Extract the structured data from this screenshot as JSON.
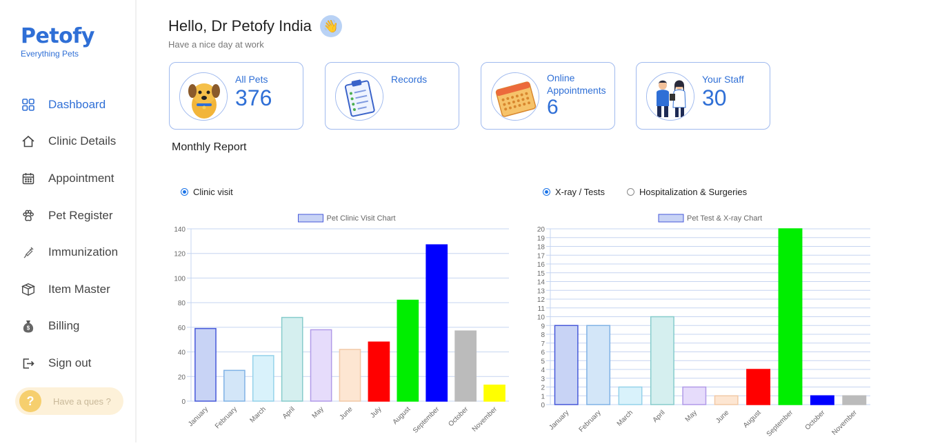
{
  "sidebar": {
    "logo_title": "Petofy",
    "logo_sub": "Everything Pets",
    "items": [
      {
        "label": "Dashboard",
        "icon": "grid-icon"
      },
      {
        "label": "Clinic Details",
        "icon": "home-icon"
      },
      {
        "label": "Appointment",
        "icon": "calendar-icon"
      },
      {
        "label": "Pet Register",
        "icon": "paw-icon"
      },
      {
        "label": "Immunization",
        "icon": "syringe-icon"
      },
      {
        "label": "Item Master",
        "icon": "box-icon"
      },
      {
        "label": "Billing",
        "icon": "money-bag-icon"
      },
      {
        "label": "Sign out",
        "icon": "sign-out-icon"
      }
    ],
    "help_label": "Have a ques ?",
    "help_icon": "?"
  },
  "header": {
    "greeting": "Hello, Dr Petofy India",
    "wave": "👋",
    "subtitle": "Have a nice day at work"
  },
  "cards": [
    {
      "label": "All Pets",
      "value": "376",
      "icon": "dog-icon"
    },
    {
      "label": "Records",
      "value": "",
      "icon": "clipboard-icon"
    },
    {
      "label": "Online Appointments",
      "value": "6",
      "icon": "calendar-icon"
    },
    {
      "label": "Your Staff",
      "value": "30",
      "icon": "staff-icon"
    }
  ],
  "report": {
    "title": "Monthly Report",
    "left_radios": [
      {
        "label": "Clinic visit",
        "checked": true
      }
    ],
    "right_radios": [
      {
        "label": "X-ray / Tests",
        "checked": true
      },
      {
        "label": "Hospitalization & Surgeries",
        "checked": false
      }
    ]
  },
  "colors": {
    "accent": "#2f6fd6"
  },
  "chart_data": [
    {
      "type": "bar",
      "legend": "Pet Clinic Visit Chart",
      "categories": [
        "January",
        "February",
        "March",
        "April",
        "May",
        "June",
        "July",
        "August",
        "September",
        "October",
        "November"
      ],
      "values": [
        59,
        25,
        37,
        68,
        58,
        42,
        48,
        82,
        127,
        57,
        13
      ],
      "ylim": [
        0,
        140
      ],
      "yticks": [
        0,
        20,
        40,
        60,
        80,
        100,
        120,
        140
      ],
      "colors": [
        {
          "fill": "#c8d3f5",
          "stroke": "#4557d9"
        },
        {
          "fill": "#d3e6f8",
          "stroke": "#7fb2e5"
        },
        {
          "fill": "#d9f2fb",
          "stroke": "#94d2ea"
        },
        {
          "fill": "#d5efef",
          "stroke": "#86cccc"
        },
        {
          "fill": "#e6dcfb",
          "stroke": "#b19ae8"
        },
        {
          "fill": "#fde6d2",
          "stroke": "#f2c9a6"
        },
        {
          "fill": "#ff0000",
          "stroke": "#ff0000"
        },
        {
          "fill": "#00ee00",
          "stroke": "#00ee00"
        },
        {
          "fill": "#0000ff",
          "stroke": "#0000ff"
        },
        {
          "fill": "#bbbbbb",
          "stroke": "#bbbbbb"
        },
        {
          "fill": "#ffff00",
          "stroke": "#ffff00"
        }
      ],
      "grid": true
    },
    {
      "type": "bar",
      "legend": "Pet Test & X-ray Chart",
      "categories": [
        "January",
        "February",
        "March",
        "April",
        "May",
        "June",
        "August",
        "September",
        "October",
        "November"
      ],
      "values": [
        9,
        9,
        2,
        10,
        2,
        1,
        4,
        20,
        1,
        1
      ],
      "ylim": [
        0,
        20
      ],
      "yticks": [
        0,
        1,
        2,
        3,
        4,
        5,
        6,
        7,
        8,
        9,
        10,
        11,
        12,
        13,
        14,
        15,
        16,
        17,
        18,
        19,
        20
      ],
      "colors": [
        {
          "fill": "#c8d3f5",
          "stroke": "#4557d9"
        },
        {
          "fill": "#d3e6f8",
          "stroke": "#7fb2e5"
        },
        {
          "fill": "#d9f2fb",
          "stroke": "#94d2ea"
        },
        {
          "fill": "#d5efef",
          "stroke": "#86cccc"
        },
        {
          "fill": "#e6dcfb",
          "stroke": "#b19ae8"
        },
        {
          "fill": "#fde6d2",
          "stroke": "#f2c9a6"
        },
        {
          "fill": "#ff0000",
          "stroke": "#ff0000"
        },
        {
          "fill": "#00ee00",
          "stroke": "#00ee00"
        },
        {
          "fill": "#0000ff",
          "stroke": "#0000ff"
        },
        {
          "fill": "#bbbbbb",
          "stroke": "#bbbbbb"
        }
      ],
      "grid": true
    }
  ]
}
